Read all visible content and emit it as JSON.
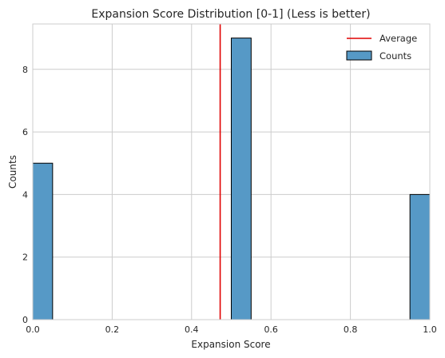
{
  "chart_data": {
    "type": "bar",
    "title": "Expansion Score Distribution [0-1] (Less is better)",
    "xlabel": "Expansion Score",
    "ylabel": "Counts",
    "xlim": [
      0,
      1
    ],
    "ylim": [
      0,
      9.45
    ],
    "x_ticks": [
      "0.0",
      "0.2",
      "0.4",
      "0.6",
      "0.8",
      "1.0"
    ],
    "y_ticks": [
      "0",
      "2",
      "4",
      "6",
      "8"
    ],
    "bin_width": 0.05,
    "bars": [
      {
        "x_start": 0.0,
        "x_end": 0.05,
        "value": 5
      },
      {
        "x_start": 0.5,
        "x_end": 0.55,
        "value": 9
      },
      {
        "x_start": 0.95,
        "x_end": 1.0,
        "value": 4
      }
    ],
    "average": 0.472,
    "grid": true,
    "legend_position": "top-right",
    "legend": [
      {
        "label": "Average",
        "kind": "line",
        "color": "#e00000"
      },
      {
        "label": "Counts",
        "kind": "patch",
        "color": "#5699c6"
      }
    ],
    "colors": {
      "bar": "#5699c6",
      "bar_edge": "#000000",
      "average": "#e00000",
      "grid": "#cccccc"
    }
  }
}
